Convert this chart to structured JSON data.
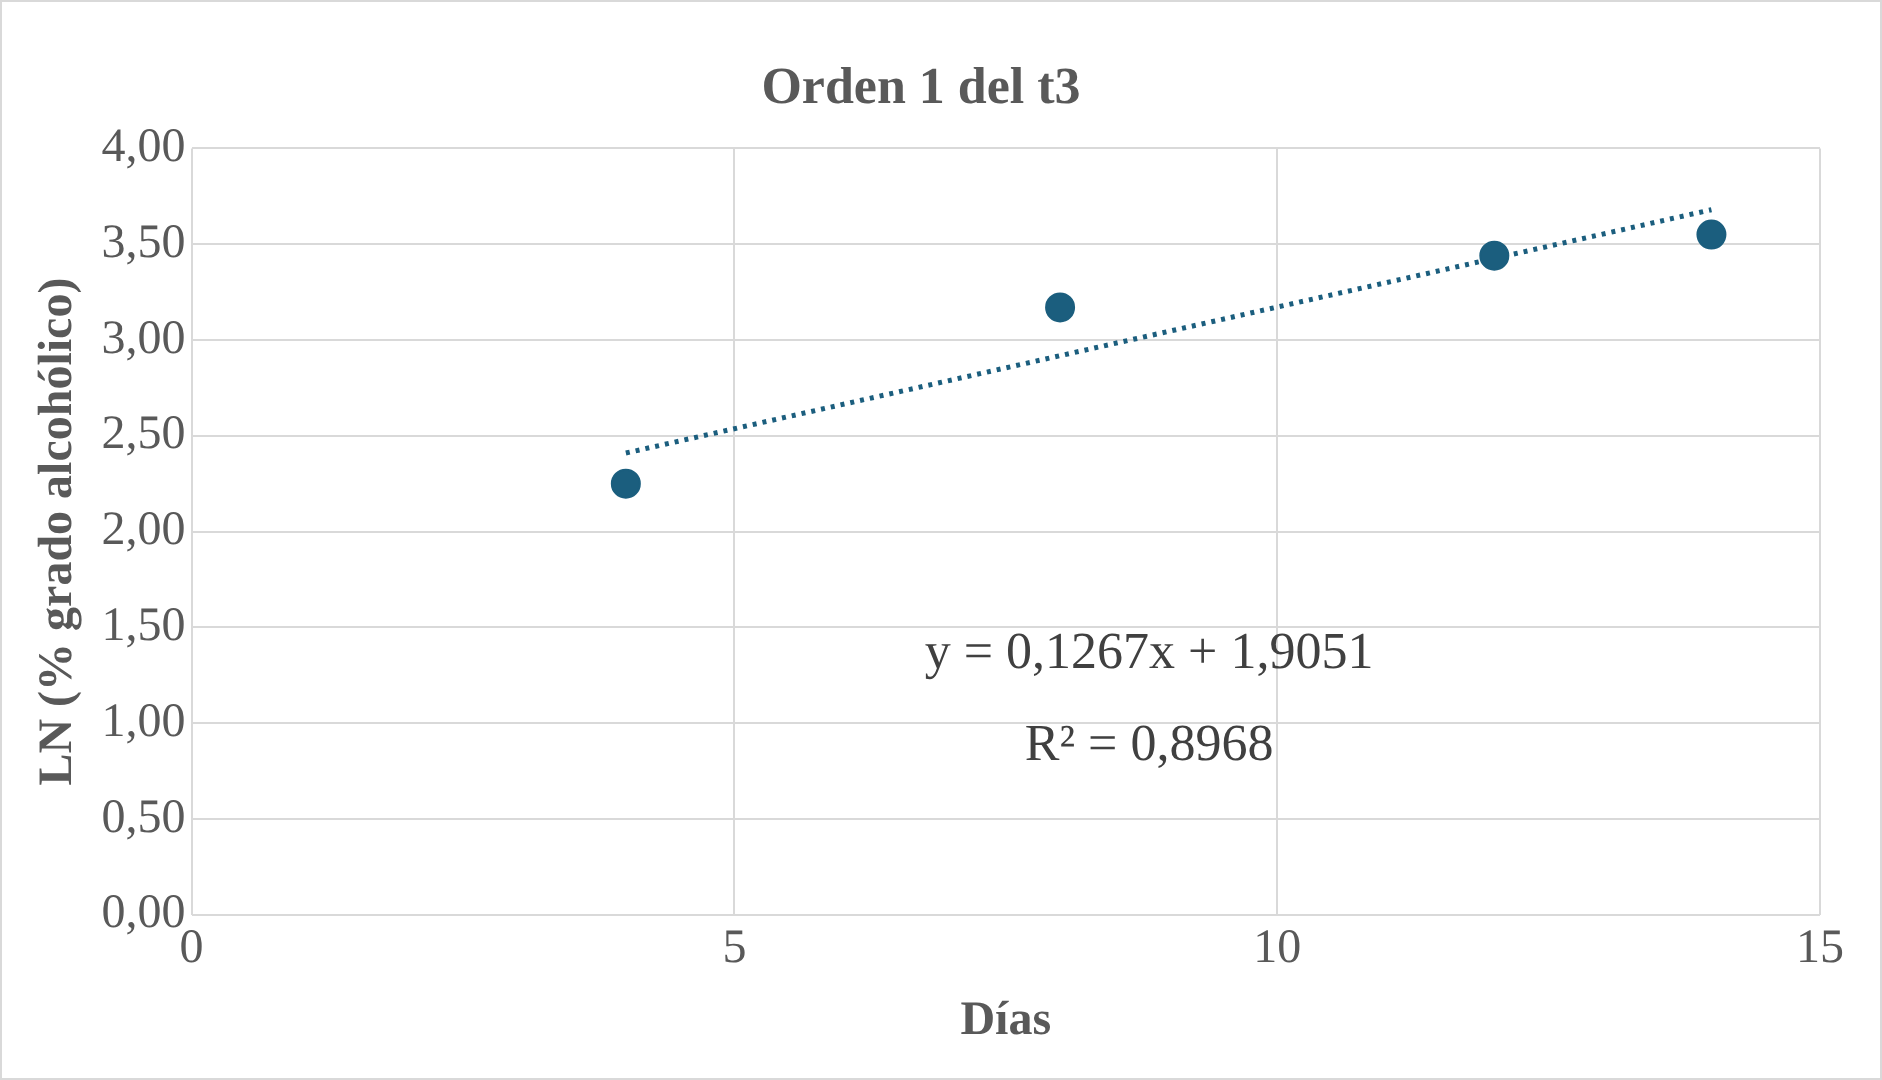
{
  "chart_data": {
    "type": "scatter",
    "title": "Orden 1 del t3",
    "xlabel": "Días",
    "ylabel": "LN (% grado alcohólico)",
    "xlim": [
      0,
      15
    ],
    "xticks": [
      0,
      5,
      10,
      15
    ],
    "ylim": [
      0,
      4
    ],
    "yticks": [
      {
        "value": 0,
        "label": "0,00"
      },
      {
        "value": 0.5,
        "label": "0,50"
      },
      {
        "value": 1,
        "label": "1,00"
      },
      {
        "value": 1.5,
        "label": "1,50"
      },
      {
        "value": 2,
        "label": "2,00"
      },
      {
        "value": 2.5,
        "label": "2,50"
      },
      {
        "value": 3,
        "label": "3,00"
      },
      {
        "value": 3.5,
        "label": "3,50"
      },
      {
        "value": 4,
        "label": "4,00"
      }
    ],
    "grid": true,
    "marker": "circle",
    "series": [
      {
        "color": "#1b5e7e",
        "x": [
          4,
          8,
          12,
          14
        ],
        "values": [
          2.25,
          3.17,
          3.44,
          3.55
        ]
      },
      {
        "type": "line",
        "color": "#1b5e7e",
        "line_style": "dotted",
        "marker": "none",
        "x": [
          4,
          14
        ],
        "values": [
          2.41,
          3.68
        ]
      }
    ],
    "annotations": [
      "y = 0,1267x + 1,9051",
      "R² = 0,8968"
    ]
  }
}
